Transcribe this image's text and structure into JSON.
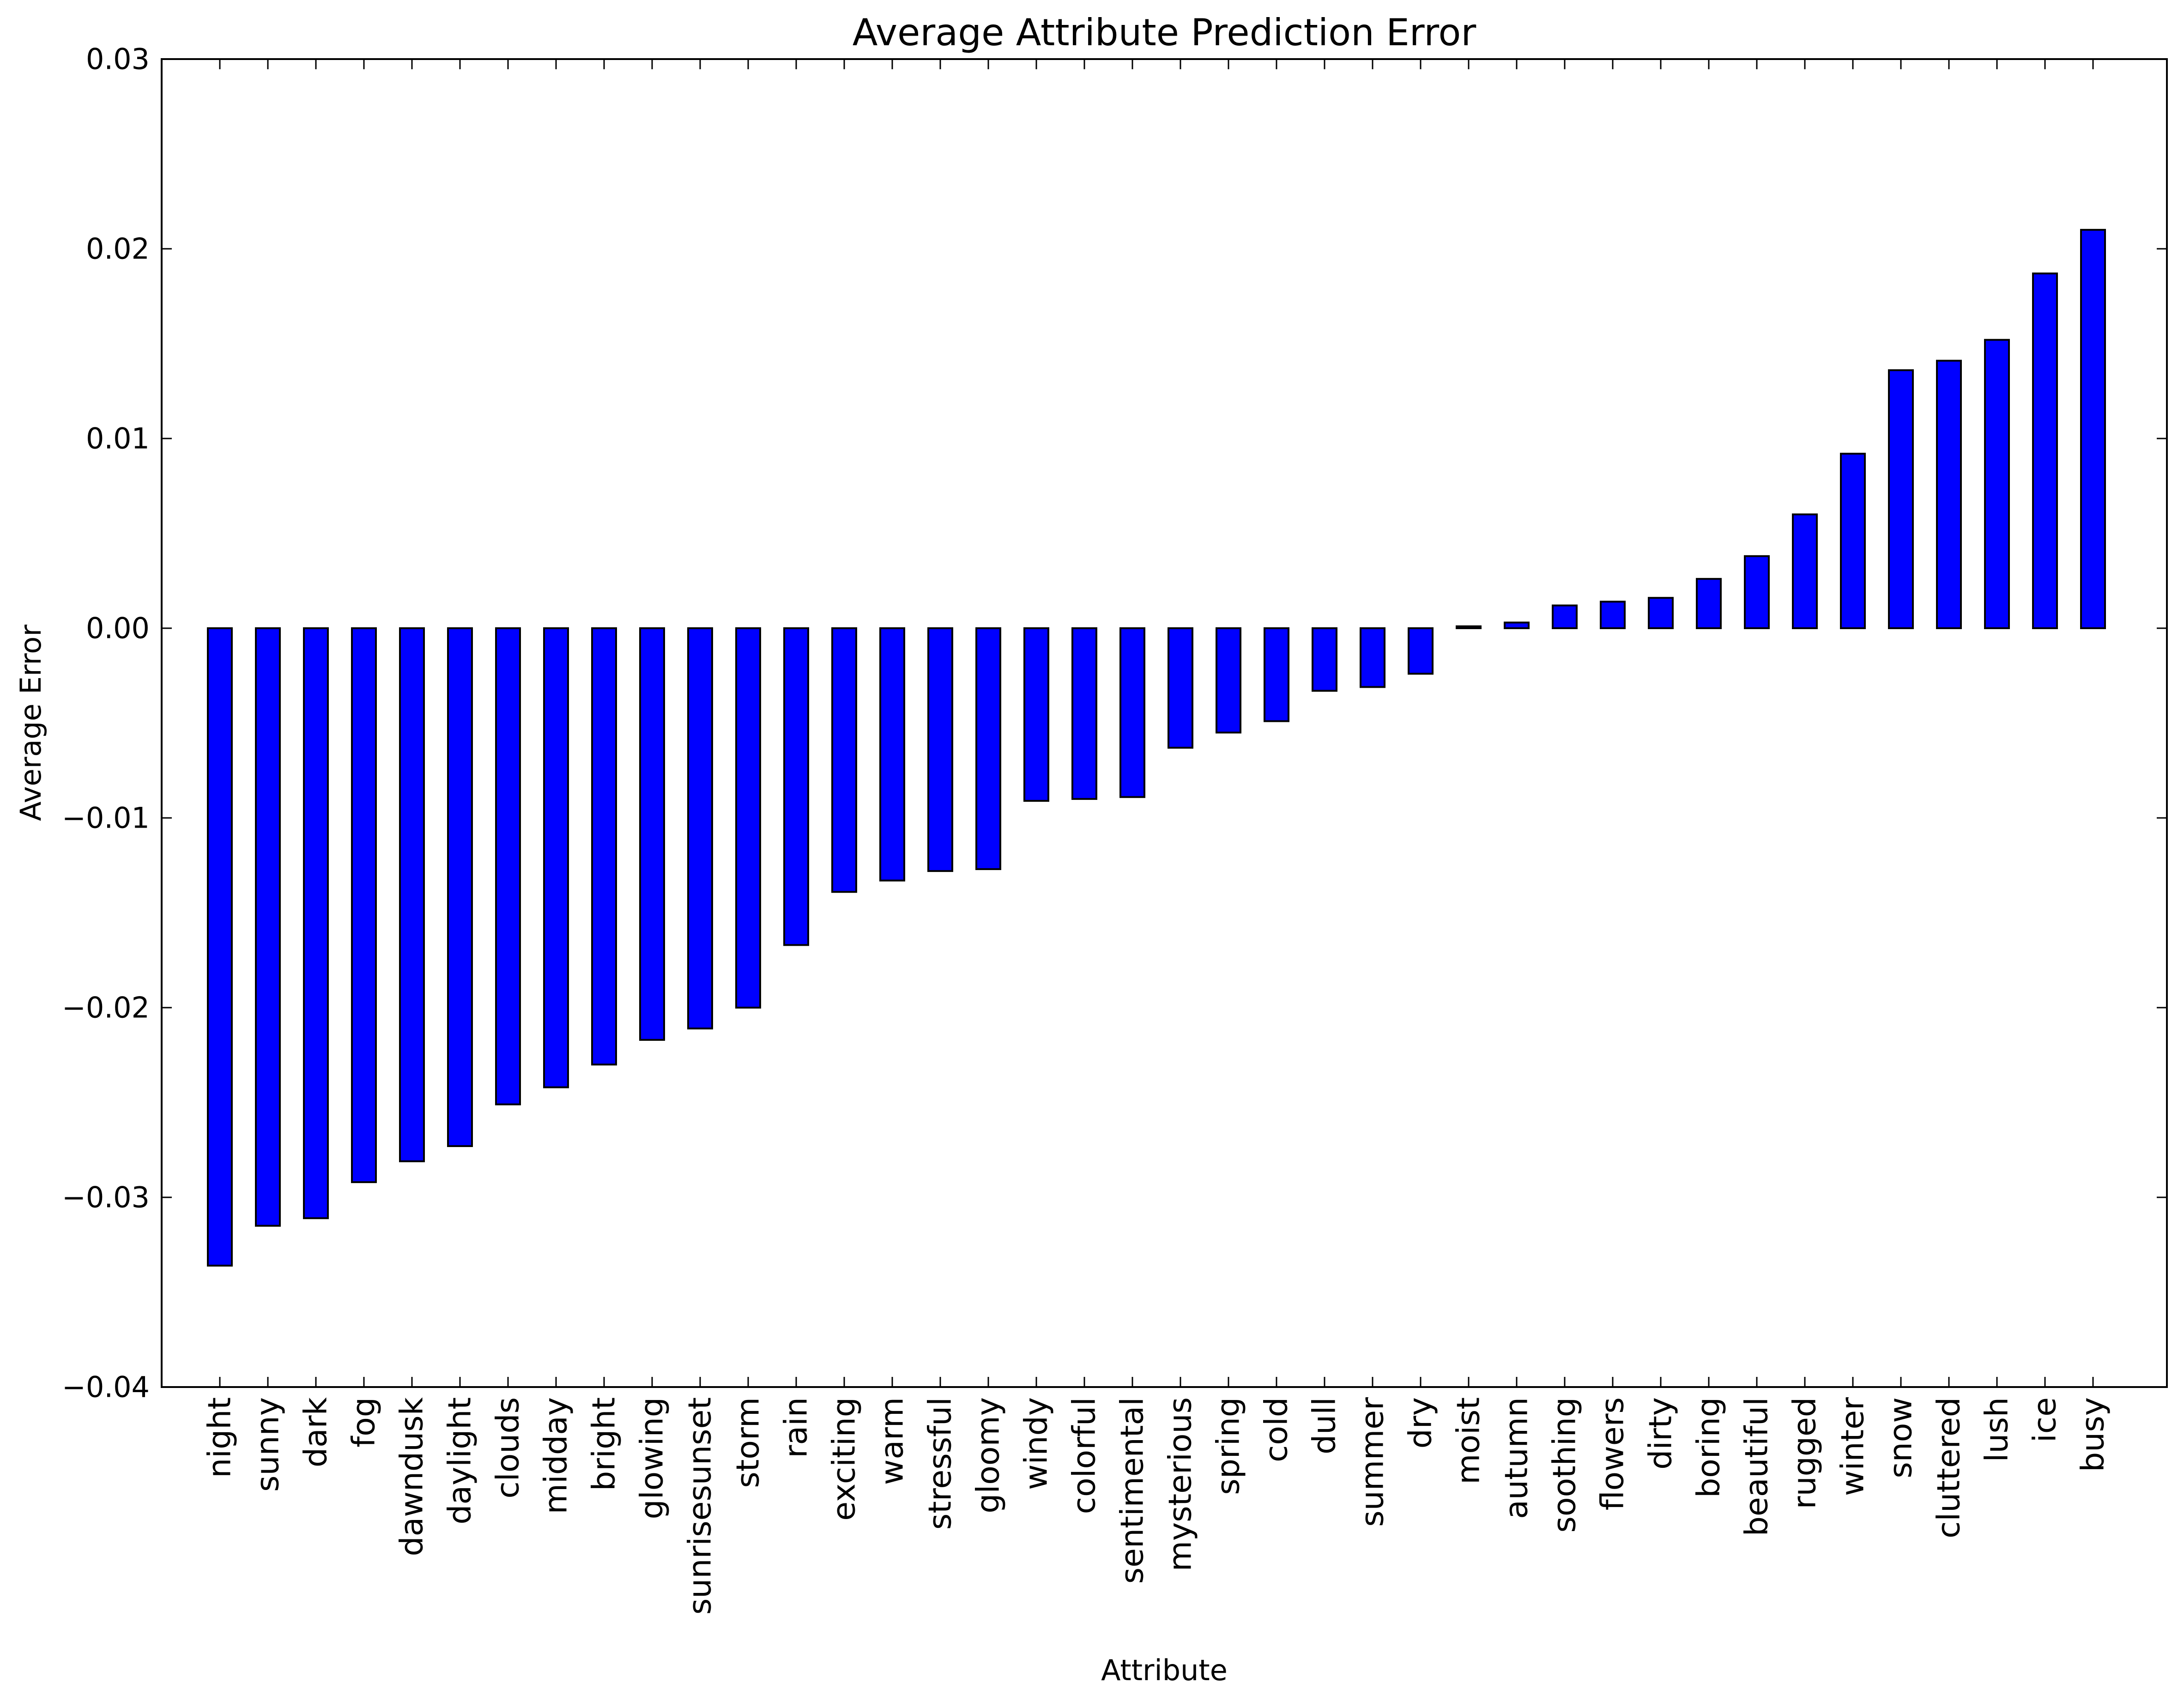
{
  "chart_data": {
    "type": "bar",
    "title": "Average Attribute Prediction Error",
    "xlabel": "Attribute",
    "ylabel": "Average Error",
    "ylim": [
      -0.04,
      0.03
    ],
    "yticks": [
      -0.04,
      -0.03,
      -0.02,
      -0.01,
      0.0,
      0.01,
      0.02,
      0.03
    ],
    "ytick_labels": [
      "−0.04",
      "−0.03",
      "−0.02",
      "−0.01",
      "0.00",
      "0.01",
      "0.02",
      "0.03"
    ],
    "grid": false,
    "legend": "none",
    "bar_color": "#0000ff",
    "edge_color": "#000000",
    "categories": [
      "night",
      "sunny",
      "dark",
      "fog",
      "dawndusk",
      "daylight",
      "clouds",
      "midday",
      "bright",
      "glowing",
      "sunrisesunset",
      "storm",
      "rain",
      "exciting",
      "warm",
      "stressful",
      "gloomy",
      "windy",
      "colorful",
      "sentimental",
      "mysterious",
      "spring",
      "cold",
      "dull",
      "summer",
      "dry",
      "moist",
      "autumn",
      "soothing",
      "flowers",
      "dirty",
      "boring",
      "beautiful",
      "rugged",
      "winter",
      "snow",
      "cluttered",
      "lush",
      "ice",
      "busy"
    ],
    "values": [
      -0.0336,
      -0.0315,
      -0.0311,
      -0.0292,
      -0.0281,
      -0.0273,
      -0.0251,
      -0.0242,
      -0.023,
      -0.0217,
      -0.0211,
      -0.02,
      -0.0167,
      -0.0139,
      -0.0133,
      -0.0128,
      -0.0127,
      -0.0091,
      -0.009,
      -0.0089,
      -0.0063,
      -0.0055,
      -0.0049,
      -0.0033,
      -0.0031,
      -0.0024,
      0.0001,
      0.0003,
      0.0012,
      0.0014,
      0.0016,
      0.0026,
      0.0038,
      0.006,
      0.0092,
      0.0136,
      0.0141,
      0.0152,
      0.0187,
      0.021
    ]
  }
}
